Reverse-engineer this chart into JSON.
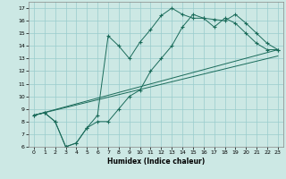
{
  "xlabel": "Humidex (Indice chaleur)",
  "background_color": "#cce8e4",
  "grid_color": "#99cccc",
  "line_color": "#1a6b5a",
  "xlim": [
    -0.5,
    23.5
  ],
  "ylim": [
    6,
    17.5
  ],
  "xticks": [
    0,
    1,
    2,
    3,
    4,
    5,
    6,
    7,
    8,
    9,
    10,
    11,
    12,
    13,
    14,
    15,
    16,
    17,
    18,
    19,
    20,
    21,
    22,
    23
  ],
  "yticks": [
    6,
    7,
    8,
    9,
    10,
    11,
    12,
    13,
    14,
    15,
    16,
    17
  ],
  "line1_x": [
    0,
    1,
    2,
    3,
    4,
    5,
    6,
    7,
    8,
    9,
    10,
    11,
    12,
    13,
    14,
    15,
    16,
    17,
    18,
    19,
    20,
    21,
    22,
    23
  ],
  "line1_y": [
    8.5,
    8.7,
    8.0,
    6.0,
    6.3,
    7.5,
    8.0,
    8.0,
    9.0,
    10.0,
    10.5,
    12.0,
    13.0,
    14.0,
    15.5,
    16.5,
    16.2,
    16.1,
    16.0,
    16.5,
    15.8,
    15.0,
    14.2,
    13.7
  ],
  "line2_x": [
    0,
    1,
    2,
    3,
    4,
    5,
    6,
    7,
    8,
    9,
    10,
    11,
    12,
    13,
    14,
    15,
    16,
    17,
    18,
    19,
    20,
    21,
    22,
    23
  ],
  "line2_y": [
    8.5,
    8.7,
    8.0,
    6.0,
    6.3,
    7.5,
    8.5,
    14.8,
    14.0,
    13.0,
    14.3,
    15.3,
    16.4,
    17.0,
    16.5,
    16.2,
    16.2,
    15.5,
    16.2,
    15.8,
    15.0,
    14.2,
    13.7,
    13.7
  ],
  "line3_x": [
    0,
    23
  ],
  "line3_y": [
    8.5,
    13.7
  ],
  "line4_x": [
    0,
    23
  ],
  "line4_y": [
    8.5,
    13.2
  ]
}
